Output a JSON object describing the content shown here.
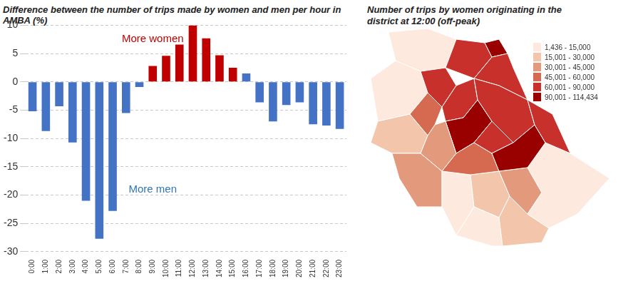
{
  "chart_data": [
    {
      "type": "bar",
      "title": "Difference between the number of trips made by women and men per hour in AMBA (%)",
      "categories": [
        "0:00",
        "1:00",
        "2:00",
        "3:00",
        "4:00",
        "5:00",
        "6:00",
        "7:00",
        "8:00",
        "9:00",
        "10:00",
        "11:00",
        "12:00",
        "13:00",
        "14:00",
        "15:00",
        "16:00",
        "17:00",
        "18:00",
        "19:00",
        "20:00",
        "21:00",
        "22:00",
        "23:00"
      ],
      "values": [
        -5.2,
        -8.7,
        -4.3,
        -10.7,
        -21,
        -27.7,
        -22.8,
        -5.5,
        -0.9,
        2.8,
        4.6,
        6.6,
        10,
        7.7,
        4.7,
        2.5,
        1.5,
        -3.6,
        -7,
        -4.1,
        -3.6,
        -7.5,
        -7.7,
        -8.3
      ],
      "colors": [
        "#4472c4",
        "#4472c4",
        "#4472c4",
        "#4472c4",
        "#4472c4",
        "#4472c4",
        "#4472c4",
        "#4472c4",
        "#4472c4",
        "#c00000",
        "#c00000",
        "#c00000",
        "#c00000",
        "#c00000",
        "#c00000",
        "#c00000",
        "#4472c4",
        "#4472c4",
        "#4472c4",
        "#4472c4",
        "#4472c4",
        "#4472c4",
        "#4472c4",
        "#4472c4"
      ],
      "ylim": [
        -30,
        10
      ],
      "yticks": [
        -30,
        -25,
        -20,
        -15,
        -10,
        -5,
        0,
        5,
        10
      ],
      "grid": true,
      "annotations": [
        {
          "text": "More women",
          "color": "#c00000",
          "x": "9:00",
          "y": 7.5
        },
        {
          "text": "More men",
          "color": "#2e75b6",
          "x": "9:00",
          "y": -19
        }
      ]
    },
    {
      "type": "choropleth",
      "title": "Number of trips by women originating in the district at 12:00 (off-peak)",
      "legend": "top right",
      "classes": [
        {
          "label": "1,436 - 15,000",
          "color": "#fde9dd"
        },
        {
          "label": "15,001 - 30,000",
          "color": "#f3c5ab"
        },
        {
          "label": "30,001 - 45,000",
          "color": "#e3997b"
        },
        {
          "label": "45,001 - 60,000",
          "color": "#d66a51"
        },
        {
          "label": "60,001 - 90,000",
          "color": "#c8312b"
        },
        {
          "label": "90,001 - 114,434",
          "color": "#990000"
        }
      ],
      "region_classes": [
        0,
        0,
        1,
        2,
        0,
        1,
        0,
        2,
        1,
        0,
        4,
        5,
        4,
        4,
        3,
        4,
        5,
        2,
        3,
        4,
        4,
        5,
        4
      ]
    }
  ]
}
